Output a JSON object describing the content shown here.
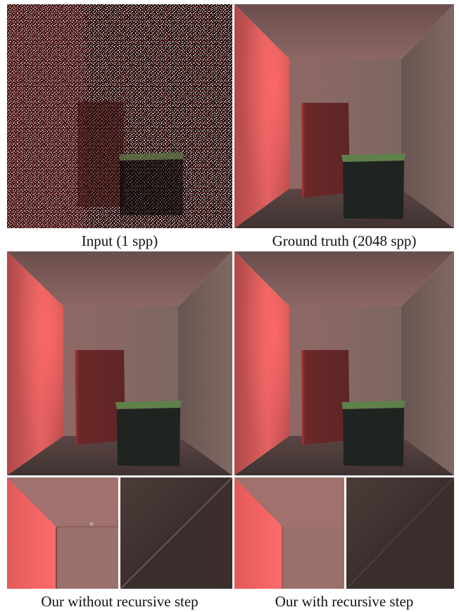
{
  "figure": {
    "panels": [
      {
        "id": "input",
        "caption": "Input (1 spp)"
      },
      {
        "id": "ground_truth",
        "caption": "Ground truth (2048 spp)"
      },
      {
        "id": "without_recursive",
        "caption": "Our without recursive step"
      },
      {
        "id": "with_recursive",
        "caption": "Our with recursive step"
      }
    ]
  },
  "colors": {
    "left_wall": "#d95a5a",
    "back_wall": "#8a6a68",
    "right_wall": "#6c5752",
    "floor": "#4a3a38",
    "ceiling": "#7a5d5a",
    "tall_box": "#6a2a2a",
    "short_box_top": "#5e7a4a",
    "short_box_front": "#1f2320"
  }
}
